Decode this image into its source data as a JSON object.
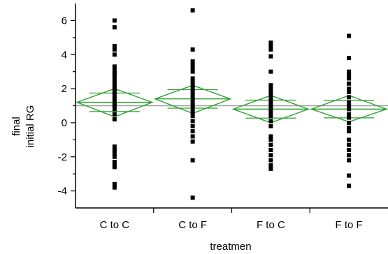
{
  "chart_data": {
    "type": "scatter",
    "xlabel": "treatmen",
    "ylabel_lines": [
      "final",
      "initial RG"
    ],
    "categories": [
      "C to C",
      "C to F",
      "F to C",
      "F to F"
    ],
    "ylim": [
      -5,
      7
    ],
    "yticks": [
      -4,
      -2,
      0,
      2,
      4,
      6
    ],
    "grand_mean": 1.0,
    "colors": {
      "points": "#000000",
      "diamond": "#2ca02c",
      "grand_mean": "#9e9e9e",
      "axis": "#000000"
    },
    "series": [
      {
        "category": "C to C",
        "mean": 1.2,
        "ci": [
          0.35,
          2.0
        ],
        "values": [
          6.0,
          5.6,
          4.5,
          4.3,
          4.0,
          3.3,
          3.1,
          2.9,
          2.8,
          2.6,
          2.4,
          2.2,
          2.0,
          1.8,
          1.6,
          1.4,
          1.2,
          1.0,
          0.8,
          0.5,
          0.2,
          -1.4,
          -1.6,
          -1.8,
          -2.0,
          -2.3,
          -2.5,
          -2.6,
          -3.6,
          -3.8
        ]
      },
      {
        "category": "C to F",
        "mean": 1.4,
        "ci": [
          0.55,
          2.2
        ],
        "values": [
          6.6,
          4.3,
          3.6,
          3.4,
          3.2,
          3.0,
          2.6,
          2.4,
          2.2,
          2.0,
          1.8,
          1.6,
          1.4,
          1.2,
          1.0,
          0.8,
          0.6,
          0.4,
          0.1,
          -0.2,
          -0.5,
          -0.8,
          -1.1,
          -2.2,
          -4.4
        ]
      },
      {
        "category": "F to C",
        "mean": 0.8,
        "ci": [
          0.0,
          1.6
        ],
        "values": [
          4.7,
          4.5,
          4.3,
          3.9,
          3.0,
          2.2,
          2.0,
          1.8,
          1.6,
          1.4,
          1.2,
          1.0,
          0.8,
          0.6,
          0.4,
          0.1,
          -0.2,
          -0.8,
          -1.0,
          -1.3,
          -1.6,
          -1.9,
          -2.2,
          -2.5,
          -2.7
        ]
      },
      {
        "category": "F to F",
        "mean": 0.8,
        "ci": [
          0.05,
          1.6
        ],
        "values": [
          5.1,
          3.8,
          3.0,
          2.8,
          2.6,
          2.3,
          2.0,
          1.8,
          1.5,
          1.2,
          1.0,
          0.8,
          0.5,
          0.3,
          0.0,
          -0.3,
          -0.5,
          -1.0,
          -1.3,
          -1.6,
          -1.9,
          -2.2,
          -3.1,
          -3.7
        ]
      }
    ]
  }
}
